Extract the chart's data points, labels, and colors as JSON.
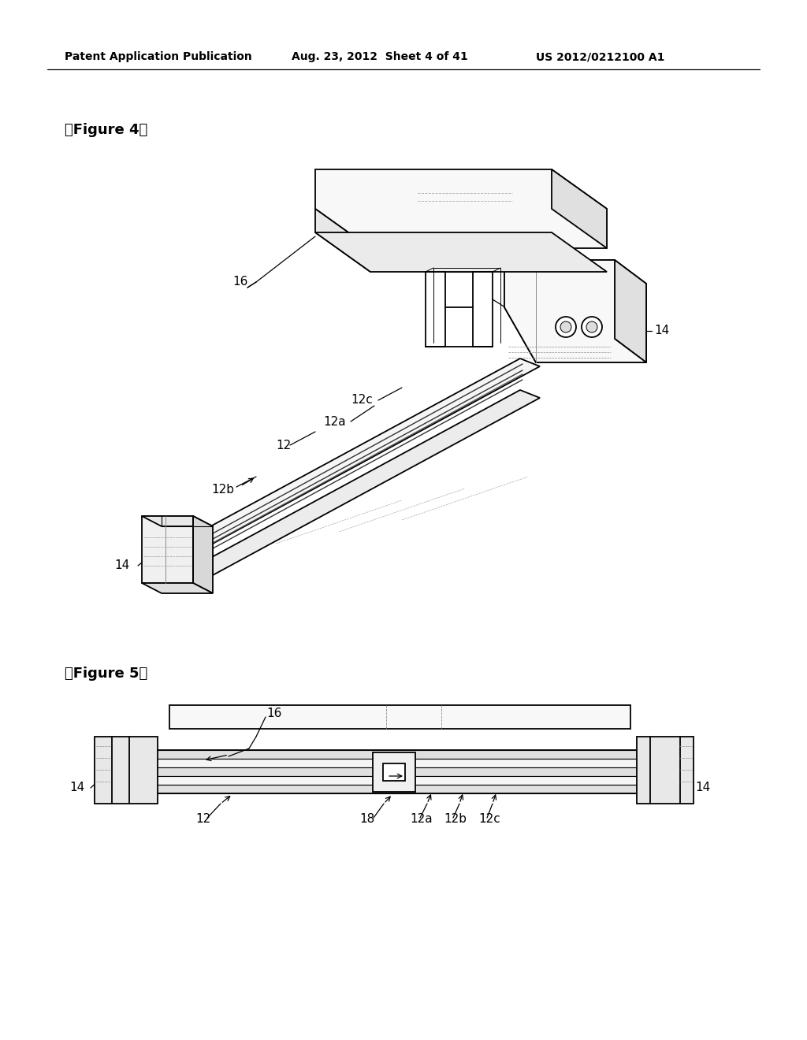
{
  "bg_color": "#ffffff",
  "line_color": "#000000",
  "header_left": "Patent Application Publication",
  "header_mid": "Aug. 23, 2012  Sheet 4 of 41",
  "header_right": "US 2012/0212100 A1",
  "fig4_label": "【Figure 4】",
  "fig5_label": "【Figure 5】",
  "fig_width": 10.24,
  "fig_height": 13.2,
  "dpi": 100
}
